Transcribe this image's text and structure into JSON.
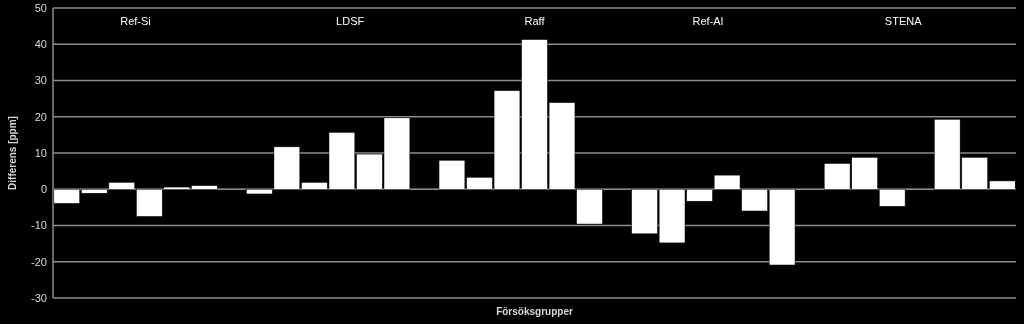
{
  "chart_data": {
    "type": "bar",
    "ylabel": "Differens [ppm]",
    "xlabel": "Försöksgrupper",
    "annotations": [
      "Ref-Si",
      "LDSF",
      "Raff",
      "Ref-Al",
      "STENA"
    ],
    "categories": [
      null,
      null,
      null,
      null,
      null,
      null,
      null,
      null,
      null,
      null,
      null,
      null,
      null,
      null,
      null,
      null,
      null,
      null,
      null,
      null,
      null,
      null,
      null,
      null,
      null,
      null,
      null,
      null,
      null,
      null,
      null,
      null,
      null,
      null,
      null
    ],
    "values": [
      -3.9,
      -1.1,
      1.9,
      -7.5,
      0.6,
      1.0,
      null,
      -1.3,
      11.7,
      1.9,
      15.7,
      9.7,
      19.7,
      null,
      8.0,
      3.3,
      27.2,
      41.3,
      23.9,
      -9.6,
      null,
      -12.3,
      -14.8,
      -3.3,
      3.9,
      -6.0,
      -20.9,
      null,
      7.1,
      8.8,
      -4.7,
      null,
      19.3,
      8.8,
      2.3
    ],
    "color": "#ffffff",
    "ylim": [
      -30,
      50
    ],
    "yticks": [
      -30,
      -20,
      -10,
      0,
      10,
      20,
      30,
      40,
      50
    ],
    "grid": "y"
  }
}
